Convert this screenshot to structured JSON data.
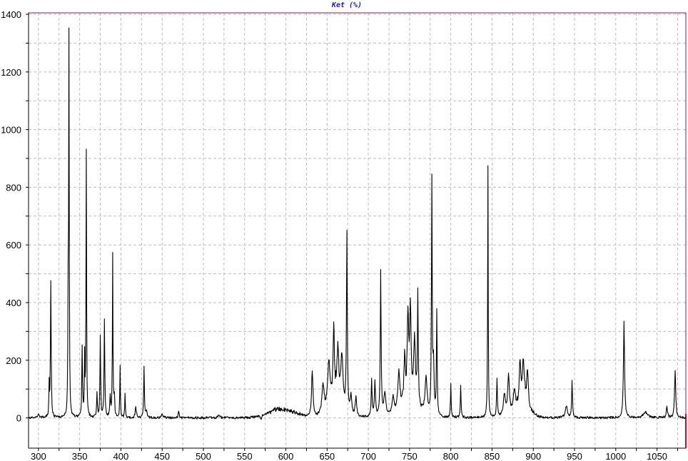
{
  "chart_data": {
    "type": "line",
    "title": "Ket (%)",
    "xlabel": "",
    "ylabel": "",
    "xlim": [
      288,
      1085
    ],
    "ylim": [
      -105,
      1405
    ],
    "x_ticks": [
      300,
      350,
      400,
      450,
      500,
      550,
      600,
      650,
      700,
      750,
      800,
      850,
      900,
      950,
      1000,
      1050
    ],
    "y_ticks": [
      0,
      200,
      400,
      600,
      800,
      1000,
      1200,
      1400
    ],
    "grid": true,
    "legend": "none",
    "series": [
      {
        "color": "#000000",
        "baseline": 0,
        "noise": 4,
        "peaks": [
          {
            "x": 300,
            "h": 12,
            "w": 1.2
          },
          {
            "x": 313,
            "h": 110,
            "w": 0.4
          },
          {
            "x": 315,
            "h": 470,
            "w": 0.5
          },
          {
            "x": 336,
            "h": 380,
            "w": 0.4
          },
          {
            "x": 337,
            "h": 1300,
            "w": 0.4
          },
          {
            "x": 353,
            "h": 240,
            "w": 0.5
          },
          {
            "x": 356,
            "h": 200,
            "w": 0.4
          },
          {
            "x": 358,
            "h": 925,
            "w": 0.4
          },
          {
            "x": 371,
            "h": 85,
            "w": 0.5
          },
          {
            "x": 375,
            "h": 280,
            "w": 0.5
          },
          {
            "x": 380,
            "h": 335,
            "w": 0.5
          },
          {
            "x": 387,
            "h": 70,
            "w": 0.6
          },
          {
            "x": 390,
            "h": 560,
            "w": 0.4
          },
          {
            "x": 392,
            "h": 70,
            "w": 0.6
          },
          {
            "x": 399,
            "h": 180,
            "w": 0.4
          },
          {
            "x": 405,
            "h": 85,
            "w": 0.4
          },
          {
            "x": 418,
            "h": 35,
            "w": 0.8
          },
          {
            "x": 428,
            "h": 175,
            "w": 0.5
          },
          {
            "x": 431,
            "h": 25,
            "w": 0.8
          },
          {
            "x": 450,
            "h": 10,
            "w": 1.5
          },
          {
            "x": 470,
            "h": 25,
            "w": 0.6
          },
          {
            "x": 519,
            "h": 8,
            "w": 1.5
          },
          {
            "x": 570,
            "h": -18,
            "w": 0.5
          },
          {
            "x": 632,
            "h": 160,
            "w": 1.0
          },
          {
            "x": 645,
            "h": 100,
            "w": 1.5
          },
          {
            "x": 652,
            "h": 155,
            "w": 1.5
          },
          {
            "x": 658,
            "h": 245,
            "w": 1.0
          },
          {
            "x": 663,
            "h": 175,
            "w": 1.5
          },
          {
            "x": 668,
            "h": 170,
            "w": 1.5
          },
          {
            "x": 674,
            "h": 620,
            "w": 0.6
          },
          {
            "x": 679,
            "h": 70,
            "w": 1.0
          },
          {
            "x": 685,
            "h": 70,
            "w": 1.0
          },
          {
            "x": 704,
            "h": 125,
            "w": 0.6
          },
          {
            "x": 708,
            "h": 120,
            "w": 0.8
          },
          {
            "x": 715,
            "h": 505,
            "w": 0.6
          },
          {
            "x": 720,
            "h": 80,
            "w": 1.5
          },
          {
            "x": 730,
            "h": 60,
            "w": 1.5
          },
          {
            "x": 737,
            "h": 130,
            "w": 1.5
          },
          {
            "x": 744,
            "h": 150,
            "w": 1.0
          },
          {
            "x": 748,
            "h": 300,
            "w": 1.0
          },
          {
            "x": 751,
            "h": 330,
            "w": 1.0
          },
          {
            "x": 756,
            "h": 220,
            "w": 1.2
          },
          {
            "x": 760,
            "h": 385,
            "w": 0.6
          },
          {
            "x": 770,
            "h": 130,
            "w": 1.5
          },
          {
            "x": 777,
            "h": 805,
            "w": 0.5
          },
          {
            "x": 779,
            "h": 180,
            "w": 0.8
          },
          {
            "x": 783,
            "h": 360,
            "w": 0.5
          },
          {
            "x": 800,
            "h": 115,
            "w": 0.5
          },
          {
            "x": 812,
            "h": 110,
            "w": 0.5
          },
          {
            "x": 845,
            "h": 875,
            "w": 0.4
          },
          {
            "x": 856,
            "h": 135,
            "w": 0.6
          },
          {
            "x": 865,
            "h": 75,
            "w": 1.5
          },
          {
            "x": 870,
            "h": 135,
            "w": 1.2
          },
          {
            "x": 877,
            "h": 70,
            "w": 1.5
          },
          {
            "x": 884,
            "h": 140,
            "w": 1.2
          },
          {
            "x": 888,
            "h": 150,
            "w": 1.5
          },
          {
            "x": 893,
            "h": 120,
            "w": 1.2
          },
          {
            "x": 940,
            "h": 40,
            "w": 1.5
          },
          {
            "x": 947,
            "h": 130,
            "w": 0.6
          },
          {
            "x": 1010,
            "h": 335,
            "w": 0.8
          },
          {
            "x": 1036,
            "h": 20,
            "w": 3.0
          },
          {
            "x": 1062,
            "h": 40,
            "w": 0.8
          },
          {
            "x": 1072,
            "h": 168,
            "w": 0.8
          }
        ],
        "bumps": [
          {
            "x": 595,
            "h": 30,
            "w": 22
          },
          {
            "x": 660,
            "h": 55,
            "w": 12
          },
          {
            "x": 750,
            "h": 50,
            "w": 14
          },
          {
            "x": 887,
            "h": 40,
            "w": 12
          }
        ]
      }
    ]
  }
}
